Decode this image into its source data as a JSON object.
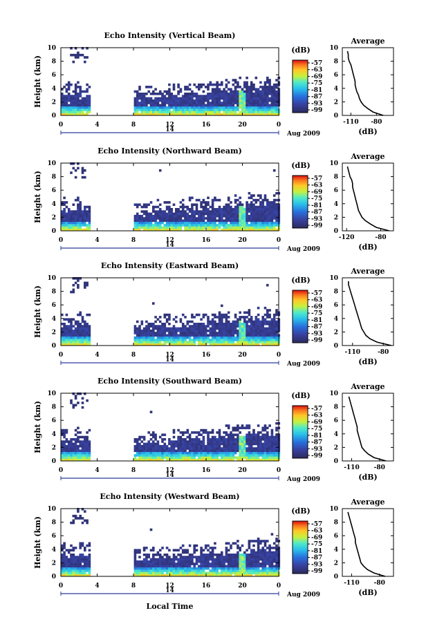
{
  "chart_data": [
    {
      "type": "heatmap",
      "title": "Echo Intensity (Vertical Beam)",
      "ylabel": "Height (km)",
      "ylim": [
        0,
        10
      ],
      "y_ticks": [
        "0",
        "2",
        "4",
        "6",
        "8",
        "10"
      ],
      "x_ticks": [
        "0",
        "4",
        "8",
        "12",
        "16",
        "20",
        "0"
      ],
      "date_day": "14",
      "date_label": "Aug 2009",
      "colorbar": {
        "unit": "(dB)",
        "ticks": [
          "-57",
          "-63",
          "-69",
          "-75",
          "-81",
          "-87",
          "-93",
          "-99"
        ]
      },
      "profile": {
        "title": "Average",
        "xlabel": "(dB)",
        "x_ticks": [
          "-110",
          "-80"
        ],
        "y_ticks": [
          "0",
          "2",
          "4",
          "6",
          "8",
          "10"
        ],
        "xlim": [
          -120,
          -60
        ],
        "heights": [
          0,
          0.5,
          1,
          1.5,
          2,
          2.5,
          3,
          3.5,
          4,
          4.5,
          5,
          5.5,
          6,
          6.5,
          7,
          7.5,
          8,
          8.5,
          9,
          9.5
        ],
        "values": [
          -72,
          -84,
          -90,
          -95,
          -98,
          -100,
          -101,
          -103,
          -104,
          -105,
          -105,
          -106,
          -107,
          -108,
          -109,
          -110,
          -112,
          -113,
          -113,
          -114
        ]
      }
    },
    {
      "type": "heatmap",
      "title": "Echo Intensity (Northward Beam)",
      "ylabel": "Height (km)",
      "ylim": [
        0,
        10
      ],
      "y_ticks": [
        "0",
        "2",
        "4",
        "6",
        "8",
        "10"
      ],
      "x_ticks": [
        "0",
        "4",
        "8",
        "12",
        "16",
        "20",
        "0"
      ],
      "date_day": "14",
      "date_label": "Aug 2009",
      "colorbar": {
        "unit": "(dB)",
        "ticks": [
          "-57",
          "-63",
          "-69",
          "-75",
          "-81",
          "-87",
          "-93",
          "-99"
        ]
      },
      "profile": {
        "title": "Average",
        "xlabel": "(dB)",
        "x_ticks": [
          "-120",
          "-80"
        ],
        "y_ticks": [
          "0",
          "2",
          "4",
          "6",
          "8",
          "10"
        ],
        "xlim": [
          -125,
          -65
        ],
        "heights": [
          0,
          0.5,
          1,
          1.5,
          2,
          2.5,
          3,
          3.5,
          4,
          4.5,
          5,
          5.5,
          6,
          6.5,
          7,
          7.5,
          8,
          8.5,
          9,
          9.5
        ],
        "values": [
          -70,
          -85,
          -92,
          -98,
          -102,
          -104,
          -106,
          -107,
          -108,
          -109,
          -110,
          -111,
          -112,
          -113,
          -113,
          -114,
          -116,
          -117,
          -118,
          -119
        ]
      }
    },
    {
      "type": "heatmap",
      "title": "Echo Intensity (Eastward Beam)",
      "ylabel": "Height (km)",
      "ylim": [
        0,
        10
      ],
      "y_ticks": [
        "0",
        "2",
        "4",
        "6",
        "8",
        "10"
      ],
      "x_ticks": [
        "0",
        "4",
        "8",
        "12",
        "16",
        "20",
        "0"
      ],
      "date_day": "14",
      "date_label": "Aug 2009",
      "colorbar": {
        "unit": "(dB)",
        "ticks": [
          "-57",
          "-63",
          "-69",
          "-75",
          "-81",
          "-87",
          "-93",
          "-99"
        ]
      },
      "profile": {
        "title": "Average",
        "xlabel": "(dB)",
        "x_ticks": [
          "-110",
          "-80"
        ],
        "y_ticks": [
          "0",
          "2",
          "4",
          "6",
          "8",
          "10"
        ],
        "xlim": [
          -120,
          -70
        ],
        "heights": [
          0,
          0.5,
          1,
          1.5,
          2,
          2.5,
          3,
          3.5,
          4,
          4.5,
          5,
          5.5,
          6,
          6.5,
          7,
          7.5,
          8,
          8.5,
          9,
          9.5
        ],
        "values": [
          -72,
          -86,
          -93,
          -97,
          -99,
          -101,
          -102,
          -103,
          -104,
          -105,
          -106,
          -107,
          -108,
          -109,
          -110,
          -111,
          -112,
          -113,
          -114,
          -114
        ]
      }
    },
    {
      "type": "heatmap",
      "title": "Echo Intensity (Southward Beam)",
      "ylabel": "Height (km)",
      "ylim": [
        0,
        10
      ],
      "y_ticks": [
        "0",
        "2",
        "4",
        "6",
        "8",
        "10"
      ],
      "x_ticks": [
        "0",
        "4",
        "8",
        "12",
        "16",
        "20",
        "0"
      ],
      "date_day": "14",
      "date_label": "Aug 2009",
      "colorbar": {
        "unit": "(dB)",
        "ticks": [
          "-57",
          "-63",
          "-69",
          "-75",
          "-81",
          "-87",
          "-93",
          "-99"
        ]
      },
      "profile": {
        "title": "Average",
        "xlabel": "(dB)",
        "x_ticks": [
          "-110",
          "-80"
        ],
        "y_ticks": [
          "0",
          "2",
          "4",
          "6",
          "8",
          "10"
        ],
        "xlim": [
          -120,
          -65
        ],
        "heights": [
          0,
          0.5,
          1,
          1.5,
          2,
          2.5,
          3,
          3.5,
          4,
          4.5,
          5,
          5.5,
          6,
          6.5,
          7,
          7.5,
          8,
          8.5,
          9,
          9.5
        ],
        "values": [
          -73,
          -86,
          -92,
          -96,
          -99,
          -100,
          -101,
          -102,
          -103,
          -104,
          -104,
          -105,
          -106,
          -107,
          -108,
          -109,
          -110,
          -111,
          -112,
          -113
        ]
      }
    },
    {
      "type": "heatmap",
      "title": "Echo Intensity (Westward Beam)",
      "ylabel": "Height (km)",
      "ylim": [
        0,
        10
      ],
      "y_ticks": [
        "0",
        "2",
        "4",
        "6",
        "8",
        "10"
      ],
      "x_ticks": [
        "0",
        "4",
        "8",
        "12",
        "16",
        "20",
        "0"
      ],
      "date_day": "14",
      "date_label": "Aug 2009",
      "xlabel": "Local Time",
      "colorbar": {
        "unit": "(dB)",
        "ticks": [
          "-57",
          "-63",
          "-69",
          "-75",
          "-81",
          "-87",
          "-93",
          "-99"
        ]
      },
      "profile": {
        "title": "Average",
        "xlabel": "(dB)",
        "x_ticks": [
          "-110",
          "-80"
        ],
        "y_ticks": [
          "0",
          "2",
          "4",
          "6",
          "8",
          "10"
        ],
        "xlim": [
          -120,
          -65
        ],
        "heights": [
          0,
          0.5,
          1,
          1.5,
          2,
          2.5,
          3,
          3.5,
          4,
          4.5,
          5,
          5.5,
          6,
          6.5,
          7,
          7.5,
          8,
          8.5,
          9,
          9.5
        ],
        "values": [
          -74,
          -86,
          -93,
          -97,
          -100,
          -101,
          -102,
          -103,
          -104,
          -105,
          -106,
          -106,
          -107,
          -108,
          -109,
          -110,
          -111,
          -112,
          -113,
          -114
        ]
      }
    }
  ]
}
